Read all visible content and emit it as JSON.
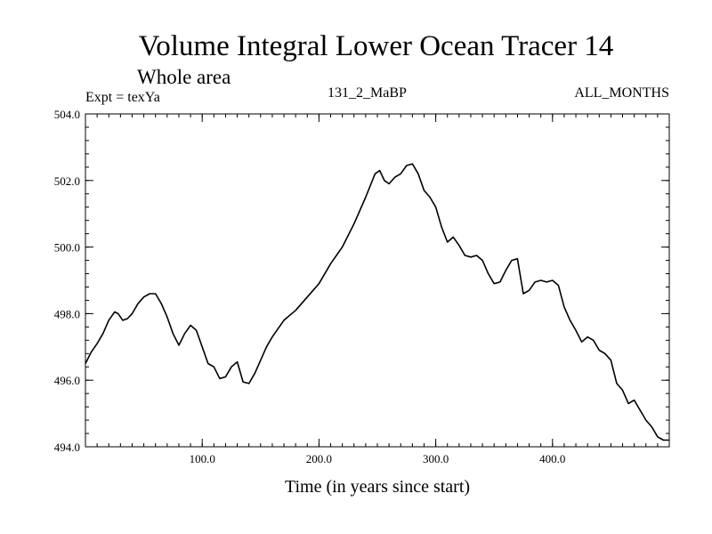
{
  "header": {
    "title": "Volume Integral Lower Ocean Tracer 14",
    "subtitle": "Whole area",
    "expt": "Expt = texYa",
    "center_label": "131_2_MaBP",
    "right_label": "ALL_MONTHS"
  },
  "chart_data": {
    "type": "line",
    "title": "Volume Integral Lower Ocean Tracer 14",
    "subtitle": "Whole area",
    "xlabel": "Time (in years since start)",
    "ylabel": "",
    "xlim": [
      0,
      500
    ],
    "ylim": [
      494.0,
      504.0
    ],
    "xticks": [
      100,
      200,
      300,
      400
    ],
    "xtick_labels": [
      "100.0",
      "200.0",
      "300.0",
      "400.0"
    ],
    "yticks": [
      494,
      496,
      498,
      500,
      502,
      504
    ],
    "ytick_labels": [
      "494.0",
      "496.0",
      "498.0",
      "500.0",
      "502.0",
      "504.0"
    ],
    "grid": false,
    "series": [
      {
        "x": [
          0,
          5,
          10,
          15,
          20,
          25,
          28,
          32,
          36,
          40,
          45,
          50,
          55,
          60,
          65,
          70,
          75,
          80,
          85,
          90,
          95,
          100,
          105,
          110,
          115,
          120,
          125,
          130,
          135,
          140,
          145,
          150,
          155,
          160,
          170,
          180,
          190,
          200,
          210,
          220,
          230,
          240,
          248,
          252,
          256,
          260,
          265,
          270,
          275,
          280,
          285,
          290,
          295,
          300,
          305,
          310,
          315,
          320,
          325,
          330,
          335,
          340,
          345,
          350,
          355,
          360,
          365,
          370,
          375,
          380,
          385,
          390,
          395,
          400,
          405,
          410,
          415,
          420,
          425,
          430,
          435,
          440,
          445,
          450,
          455,
          460,
          465,
          470,
          475,
          480,
          485,
          490,
          495,
          500
        ],
        "y": [
          496.5,
          496.85,
          497.1,
          497.4,
          497.8,
          498.05,
          498.0,
          497.8,
          497.85,
          498.0,
          498.3,
          498.5,
          498.6,
          498.6,
          498.3,
          497.9,
          497.4,
          497.05,
          497.4,
          497.65,
          497.5,
          497.0,
          496.5,
          496.4,
          496.05,
          496.1,
          496.4,
          496.55,
          495.95,
          495.9,
          496.2,
          496.6,
          497.0,
          497.3,
          497.8,
          498.1,
          498.5,
          498.9,
          499.5,
          500.0,
          500.7,
          501.5,
          502.2,
          502.3,
          502.0,
          501.9,
          502.1,
          502.2,
          502.45,
          502.5,
          502.2,
          501.7,
          501.5,
          501.2,
          500.6,
          500.15,
          500.3,
          500.05,
          499.75,
          499.7,
          499.75,
          499.6,
          499.2,
          498.9,
          498.95,
          499.3,
          499.6,
          499.65,
          498.6,
          498.7,
          498.95,
          499.0,
          498.95,
          499.0,
          498.85,
          498.2,
          497.8,
          497.5,
          497.15,
          497.3,
          497.2,
          496.9,
          496.8,
          496.6,
          495.9,
          495.7,
          495.3,
          495.4,
          495.1,
          494.8,
          494.6,
          494.3,
          494.2,
          494.2
        ]
      }
    ]
  }
}
